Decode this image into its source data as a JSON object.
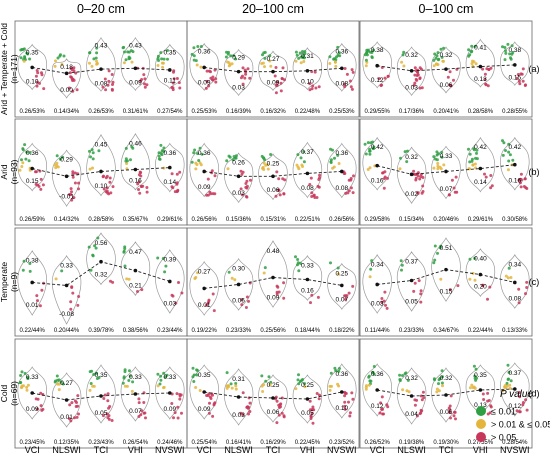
{
  "figure": {
    "columns": [
      "0–20 cm",
      "20–100 cm",
      "0–100 cm"
    ],
    "legend": {
      "title": "P value",
      "items": [
        {
          "label": "≤ 0.01",
          "color": "#2ea043"
        },
        {
          "label": "> 0.01 & ≤  0.05",
          "color": "#e3b53c"
        },
        {
          "label": "> 0.05",
          "color": "#c8375a"
        }
      ]
    }
  },
  "chart_data": {
    "type": "violin-scatter",
    "indices": [
      "VCI",
      "NLSWI",
      "TCI",
      "VHI",
      "NVSWI"
    ],
    "colors": {
      "sig01": "#2ea043",
      "sig05": "#e3b53c",
      "ns": "#c8375a"
    },
    "rows": [
      {
        "ylabel": "Arid + Temperate + Cold\n(n=171)",
        "tag": "(a)",
        "panels": [
          {
            "upper": [
              "0.35",
              "0.18",
              "0.43",
              "0.43",
              "0.35"
            ],
            "lower": [
              "0.10",
              "0.00",
              "0.08",
              "0.09",
              "0.11"
            ],
            "mean": [
              0.22,
              0.15,
              0.2,
              0.21,
              0.19
            ],
            "stats": [
              "0.26/53%",
              "0.14/34%",
              "0.26/53%",
              "0.31/61%",
              "0.27/54%"
            ]
          },
          {
            "upper": [
              "0.36",
              "0.29",
              "0.27",
              "0.31",
              "0.36"
            ],
            "lower": [
              "0.09",
              "0.03",
              "0.09",
              "0.10",
              "0.08"
            ],
            "mean": [
              0.22,
              0.17,
              0.17,
              0.18,
              0.21
            ],
            "stats": [
              "0.25/53%",
              "0.16/39%",
              "0.16/32%",
              "0.22/48%",
              "0.25/53%"
            ]
          },
          {
            "upper": [
              "0.38",
              "0.32",
              "0.32",
              "0.41",
              "0.38"
            ],
            "lower": [
              "0.12",
              "0.03",
              "0.06",
              "0.13",
              "0.15"
            ],
            "mean": [
              0.24,
              0.18,
              0.2,
              0.23,
              0.25
            ],
            "stats": [
              "0.29/55%",
              "0.17/36%",
              "0.20/41%",
              "0.28/58%",
              "0.28/55%"
            ]
          }
        ]
      },
      {
        "ylabel": "Arid\n(n=93)",
        "tag": "(b)",
        "panels": [
          {
            "upper": [
              "0.36",
              "0.29",
              "0.45",
              "0.46",
              "0.36"
            ],
            "lower": [
              "0.15",
              "-0.01",
              "0.10",
              "0.16",
              "0.14"
            ],
            "mean": [
              0.24,
              0.16,
              0.21,
              0.23,
              0.25
            ],
            "stats": [
              "0.26/59%",
              "0.14/32%",
              "0.28/58%",
              "0.35/67%",
              "0.29/61%"
            ]
          },
          {
            "upper": [
              "0.36",
              "0.26",
              "0.25",
              "0.37",
              "0.36"
            ],
            "lower": [
              "0.09",
              "0.03",
              "0.06",
              "0.08",
              "0.08"
            ],
            "mean": [
              0.21,
              0.16,
              0.16,
              0.19,
              0.21
            ],
            "stats": [
              "0.26/56%",
              "0.15/36%",
              "0.15/31%",
              "0.22/51%",
              "0.26/56%"
            ]
          },
          {
            "upper": [
              "0.42",
              "0.32",
              "0.33",
              "0.42",
              "0.42"
            ],
            "lower": [
              "0.16",
              "0.02",
              "0.07",
              "0.14",
              "0.16"
            ],
            "mean": [
              0.27,
              0.18,
              0.21,
              0.24,
              0.28
            ],
            "stats": [
              "0.29/58%",
              "0.15/34%",
              "0.20/46%",
              "0.29/61%",
              "0.30/58%"
            ]
          }
        ]
      },
      {
        "ylabel": "Temperate\n(n=9)",
        "tag": "(c)",
        "panels": [
          {
            "upper": [
              "0.38",
              "0.33",
              "0.56",
              "0.47",
              "0.39"
            ],
            "lower": [
              "0.01",
              "-0.08",
              "0.32",
              "0.21",
              "0.03"
            ],
            "mean": [
              0.2,
              0.17,
              0.41,
              0.32,
              0.21
            ],
            "stats": [
              "0.22/44%",
              "0.20/44%",
              "0.39/78%",
              "0.38/56%",
              "0.23/44%"
            ]
          },
          {
            "upper": [
              "0.27",
              "0.30",
              "0.48",
              "0.33",
              "0.25"
            ],
            "lower": [
              "0.01",
              "0.06",
              "0.09",
              "0.16",
              "0.07"
            ],
            "mean": [
              0.14,
              0.18,
              0.25,
              0.23,
              0.17
            ],
            "stats": [
              "0.19/22%",
              "0.23/33%",
              "0.25/56%",
              "0.18/44%",
              "0.18/22%"
            ]
          },
          {
            "upper": [
              "0.34",
              "0.37",
              "0.51",
              "0.40",
              "0.34"
            ],
            "lower": [
              "0.03",
              "0.05",
              "0.15",
              "0.20",
              "0.08"
            ],
            "mean": [
              0.18,
              0.22,
              0.33,
              0.28,
              0.2
            ],
            "stats": [
              "0.11/44%",
              "0.23/33%",
              "0.34/67%",
              "0.22/44%",
              "0.13/33%"
            ]
          }
        ]
      },
      {
        "ylabel": "Cold\n(n=69)",
        "tag": "(d)",
        "panels": [
          {
            "upper": [
              "0.33",
              "0.27",
              "0.35",
              "0.33",
              "0.33"
            ],
            "lower": [
              "0.09",
              "0.01",
              "0.05",
              "0.07",
              "0.09"
            ],
            "mean": [
              0.21,
              0.14,
              0.18,
              0.2,
              0.21
            ],
            "stats": [
              "0.23/45%",
              "0.12/35%",
              "0.23/43%",
              "0.26/54%",
              "0.24/46%"
            ]
          },
          {
            "upper": [
              "0.35",
              "0.31",
              "0.25",
              "0.25",
              "0.36"
            ],
            "lower": [
              "0.09",
              "0.03",
              "0.06",
              "0.05",
              "0.10"
            ],
            "mean": [
              0.22,
              0.17,
              0.16,
              0.15,
              0.22
            ],
            "stats": [
              "0.25/54%",
              "0.16/41%",
              "0.16/29%",
              "0.22/45%",
              "0.23/52%"
            ]
          },
          {
            "upper": [
              "0.36",
              "0.32",
              "0.32",
              "0.35",
              "0.37"
            ],
            "lower": [
              "0.12",
              "0.04",
              "0.06",
              "0.13",
              "0.12"
            ],
            "mean": [
              0.24,
              0.18,
              0.19,
              0.24,
              0.25
            ],
            "stats": [
              "0.26/52%",
              "0.19/38%",
              "0.19/30%",
              "0.27/55%",
              "0.28/54%"
            ]
          }
        ]
      }
    ]
  }
}
